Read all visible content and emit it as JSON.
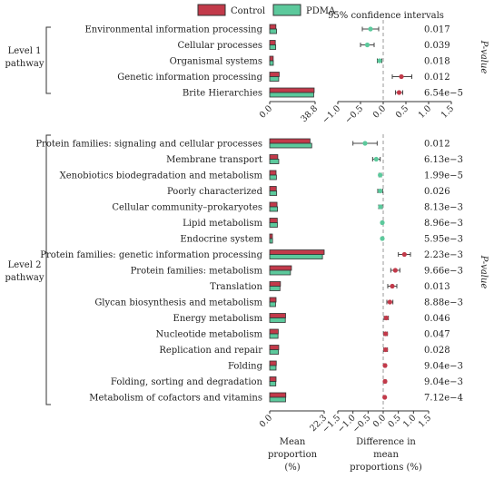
{
  "chart_data": {
    "type": "bar",
    "legend": {
      "position": "top",
      "entries": [
        {
          "name": "Control",
          "color": "#c23a4a"
        },
        {
          "name": "PDMA",
          "color": "#5cc99c"
        }
      ]
    },
    "ci_title": "95% confidence intervals",
    "pvalue_label": "P-value",
    "xlabel_mean": "Mean proportion (%)",
    "xlabel_diff": "Difference in mean proportions (%)",
    "panels": [
      {
        "level": "Level 1 pathway",
        "mean_xlim": [
          0,
          38.8
        ],
        "mean_ticks": [
          "0.0",
          "38.8"
        ],
        "diff_xlim": [
          -1.0,
          1.5
        ],
        "diff_ticks": [
          "−1.0",
          "−0.5",
          "0.0",
          "0.5",
          "1.0",
          "1.5"
        ],
        "rows": [
          {
            "name": "Environmental information processing",
            "control": 5.3,
            "pdma": 5.85,
            "diff": -0.28,
            "ci": [
              -0.46,
              -0.1
            ],
            "p": "0.017"
          },
          {
            "name": "Cellular processes",
            "control": 4.8,
            "pdma": 5.15,
            "diff": -0.35,
            "ci": [
              -0.5,
              -0.2
            ],
            "p": "0.039"
          },
          {
            "name": "Organismal systems",
            "control": 3.0,
            "pdma": 3.1,
            "diff": -0.08,
            "ci": [
              -0.13,
              -0.03
            ],
            "p": "0.018"
          },
          {
            "name": "Genetic information processing",
            "control": 8.1,
            "pdma": 7.7,
            "diff": 0.4,
            "ci": [
              0.2,
              0.63
            ],
            "p": "0.012"
          },
          {
            "name": "Brite Hierarchies",
            "control": 38.0,
            "pdma": 37.6,
            "diff": 0.35,
            "ci": [
              0.27,
              0.43
            ],
            "p": "6.54e−5"
          }
        ]
      },
      {
        "level": "Level 2 pathway",
        "mean_xlim": [
          0,
          22.3
        ],
        "mean_ticks": [
          "0.0",
          "22.3"
        ],
        "diff_xlim": [
          -1.5,
          1.5
        ],
        "diff_ticks": [
          "−1.5",
          "−1.0",
          "−0.5",
          "0.0",
          "0.5",
          "1.0",
          "1.5"
        ],
        "rows": [
          {
            "name": "Protein families: signaling and cellular processes",
            "control": 16.5,
            "pdma": 17.2,
            "diff": -0.6,
            "ci": [
              -1.0,
              -0.2
            ],
            "p": "0.012"
          },
          {
            "name": "Membrane transport",
            "control": 3.3,
            "pdma": 3.7,
            "diff": -0.23,
            "ci": [
              -0.35,
              -0.1
            ],
            "p": "6.13e−3"
          },
          {
            "name": "Xenobiotics biodegradation and metabolism",
            "control": 2.6,
            "pdma": 2.75,
            "diff": -0.1,
            "ci": [
              -0.14,
              -0.06
            ],
            "p": "1.99e−5"
          },
          {
            "name": "Poorly characterized",
            "control": 2.7,
            "pdma": 2.85,
            "diff": -0.1,
            "ci": [
              -0.18,
              -0.02
            ],
            "p": "0.026"
          },
          {
            "name": "Cellular community–prokaryotes",
            "control": 3.0,
            "pdma": 3.2,
            "diff": -0.09,
            "ci": [
              -0.15,
              -0.03
            ],
            "p": "8.13e−3"
          },
          {
            "name": "Lipid metabolism",
            "control": 3.1,
            "pdma": 3.15,
            "diff": -0.03,
            "ci": [
              -0.05,
              -0.01
            ],
            "p": "8.96e−3"
          },
          {
            "name": "Endocrine system",
            "control": 1.1,
            "pdma": 1.15,
            "diff": -0.03,
            "ci": [
              -0.05,
              -0.01
            ],
            "p": "5.95e−3"
          },
          {
            "name": "Protein families: genetic information processing",
            "control": 22.3,
            "pdma": 21.6,
            "diff": 0.7,
            "ci": [
              0.5,
              0.9
            ],
            "p": "2.23e−3"
          },
          {
            "name": "Protein families: metabolism",
            "control": 8.9,
            "pdma": 8.5,
            "diff": 0.4,
            "ci": [
              0.25,
              0.55
            ],
            "p": "9.66e−3"
          },
          {
            "name": "Translation",
            "control": 4.4,
            "pdma": 4.2,
            "diff": 0.3,
            "ci": [
              0.15,
              0.45
            ],
            "p": "0.013"
          },
          {
            "name": "Glycan biosynthesis and metabolism",
            "control": 2.6,
            "pdma": 2.4,
            "diff": 0.22,
            "ci": [
              0.12,
              0.32
            ],
            "p": "8.88e−3"
          },
          {
            "name": "Energy metabolism",
            "control": 6.5,
            "pdma": 6.4,
            "diff": 0.1,
            "ci": [
              0.03,
              0.17
            ],
            "p": "0.046"
          },
          {
            "name": "Nucleotide metabolism",
            "control": 3.5,
            "pdma": 3.4,
            "diff": 0.08,
            "ci": [
              0.02,
              0.14
            ],
            "p": "0.047"
          },
          {
            "name": "Replication and repair",
            "control": 3.7,
            "pdma": 3.6,
            "diff": 0.08,
            "ci": [
              0.02,
              0.14
            ],
            "p": "0.028"
          },
          {
            "name": "Folding",
            "control": 2.7,
            "pdma": 2.6,
            "diff": 0.06,
            "ci": [
              0.03,
              0.09
            ],
            "p": "9.04e−3"
          },
          {
            "name": "Folding, sorting and degradation",
            "control": 2.6,
            "pdma": 2.5,
            "diff": 0.06,
            "ci": [
              0.03,
              0.09
            ],
            "p": "9.04e−3"
          },
          {
            "name": "Metabolism of cofactors and vitamins",
            "control": 6.6,
            "pdma": 6.5,
            "diff": 0.05,
            "ci": [
              0.03,
              0.07
            ],
            "p": "7.12e−4"
          }
        ]
      }
    ]
  }
}
